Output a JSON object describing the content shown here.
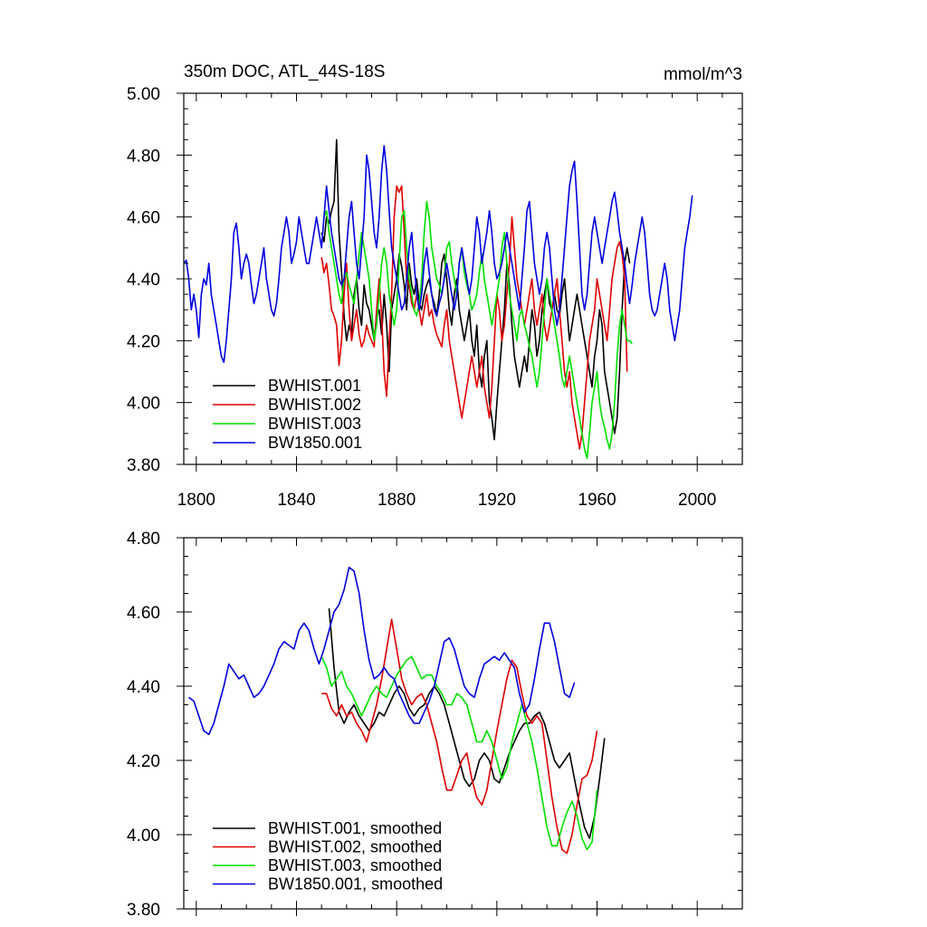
{
  "colors": {
    "BWHIST.001": "#000000",
    "BWHIST.002": "#e00000",
    "BWHIST.003": "#00e000",
    "BW1850.001": "#0000e0"
  },
  "chart_data": [
    {
      "type": "line",
      "title": "350m DOC, ATL_44S-18S",
      "units": "mmol/m^3",
      "xlim": [
        1795,
        2018
      ],
      "ylim": [
        3.8,
        5.0
      ],
      "xticks": [
        1800,
        1840,
        1880,
        1920,
        1960,
        2000
      ],
      "xtick_labels": [
        "1800",
        "1840",
        "1880",
        "1920",
        "1960",
        "2000"
      ],
      "yticks": [
        3.8,
        4.0,
        4.2,
        4.4,
        4.6,
        4.8,
        5.0
      ],
      "ytick_labels": [
        "3.80",
        "4.00",
        "4.20",
        "4.40",
        "4.60",
        "4.80",
        "5.00"
      ],
      "legend": "bottom-left",
      "series": [
        {
          "name": "BWHIST.001",
          "color": "#000000",
          "x0": 1850,
          "values": [
            4.55,
            4.52,
            4.6,
            4.58,
            4.62,
            4.65,
            4.85,
            4.55,
            4.42,
            4.28,
            4.2,
            4.25,
            4.22,
            4.35,
            4.4,
            4.3,
            4.25,
            4.38,
            4.32,
            4.3,
            4.25,
            4.2,
            4.28,
            4.3,
            4.22,
            4.35,
            4.25,
            4.1,
            4.3,
            4.35,
            4.4,
            4.48,
            4.44,
            4.38,
            4.3,
            4.45,
            4.38,
            4.35,
            4.4,
            4.32,
            4.3,
            4.35,
            4.38,
            4.4,
            4.35,
            4.32,
            4.28,
            4.35,
            4.45,
            4.48,
            4.4,
            4.3,
            4.25,
            4.35,
            4.4,
            4.3,
            4.25,
            4.2,
            4.25,
            4.3,
            4.2,
            4.15,
            4.25,
            4.1,
            4.05,
            4.15,
            4.2,
            4.0,
            3.95,
            3.88,
            4.0,
            4.1,
            4.2,
            4.3,
            4.45,
            4.38,
            4.25,
            4.15,
            4.1,
            4.05,
            4.1,
            4.15,
            4.1,
            4.2,
            4.3,
            4.25,
            4.15,
            4.2,
            4.3,
            4.35,
            4.4,
            4.32,
            4.3,
            4.35,
            4.3,
            4.28,
            4.35,
            4.4,
            4.3,
            4.2,
            4.25,
            4.3,
            4.35,
            4.3,
            4.25,
            4.2,
            4.15,
            4.1,
            4.05,
            4.15,
            4.2,
            4.3,
            4.25,
            4.1,
            4.05,
            4.0,
            3.95,
            3.9,
            3.95,
            4.1,
            4.3,
            4.45,
            4.5,
            4.45
          ]
        },
        {
          "name": "BWHIST.002",
          "color": "#e00000",
          "x0": 1850,
          "values": [
            4.47,
            4.42,
            4.45,
            4.38,
            4.3,
            4.28,
            4.25,
            4.12,
            4.2,
            4.35,
            4.45,
            4.3,
            4.2,
            4.25,
            4.3,
            4.22,
            4.18,
            4.2,
            4.25,
            4.22,
            4.2,
            4.18,
            4.3,
            4.4,
            4.28,
            4.1,
            4.02,
            4.2,
            4.35,
            4.6,
            4.7,
            4.68,
            4.7,
            4.55,
            4.4,
            4.38,
            4.32,
            4.3,
            4.35,
            4.3,
            4.25,
            4.3,
            4.35,
            4.28,
            4.3,
            4.25,
            4.22,
            4.2,
            4.18,
            4.25,
            4.3,
            4.2,
            4.15,
            4.1,
            4.05,
            4.0,
            3.95,
            4.0,
            4.05,
            4.1,
            4.15,
            4.1,
            4.05,
            4.1,
            4.15,
            4.05,
            4.0,
            3.95,
            4.05,
            4.2,
            4.35,
            4.3,
            4.2,
            4.25,
            4.35,
            4.45,
            4.6,
            4.5,
            4.4,
            4.35,
            4.3,
            4.25,
            4.3,
            4.35,
            4.4,
            4.3,
            4.25,
            4.3,
            4.35,
            4.25,
            4.2,
            4.25,
            4.3,
            4.35,
            4.4,
            4.3,
            4.2,
            4.1,
            4.05,
            4.1,
            4.0,
            3.95,
            3.9,
            3.85,
            3.9,
            4.0,
            4.1,
            4.2,
            4.25,
            4.3,
            4.4,
            4.35,
            4.3,
            4.25,
            4.2,
            4.3,
            4.4,
            4.45,
            4.5,
            4.52,
            4.48,
            4.4,
            4.1
          ]
        },
        {
          "name": "BWHIST.003",
          "color": "#00e000",
          "x0": 1851,
          "values": [
            4.6,
            4.62,
            4.55,
            4.5,
            4.45,
            4.4,
            4.35,
            4.32,
            4.4,
            4.42,
            4.38,
            4.35,
            4.32,
            4.4,
            4.48,
            4.55,
            4.5,
            4.45,
            4.4,
            4.3,
            4.2,
            4.25,
            4.35,
            4.45,
            4.5,
            4.45,
            4.35,
            4.3,
            4.25,
            4.3,
            4.45,
            4.6,
            4.62,
            4.5,
            4.4,
            4.35,
            4.3,
            4.28,
            4.32,
            4.4,
            4.55,
            4.65,
            4.6,
            4.5,
            4.45,
            4.4,
            4.38,
            4.35,
            4.4,
            4.5,
            4.52,
            4.45,
            4.4,
            4.35,
            4.45,
            4.5,
            4.42,
            4.38,
            4.35,
            4.3,
            4.32,
            4.35,
            4.42,
            4.48,
            4.4,
            4.35,
            4.3,
            4.25,
            4.3,
            4.35,
            4.4,
            4.5,
            4.55,
            4.45,
            4.35,
            4.3,
            4.25,
            4.2,
            4.28,
            4.3,
            4.25,
            4.22,
            4.18,
            4.15,
            4.1,
            4.05,
            4.1,
            4.2,
            4.3,
            4.4,
            4.35,
            4.3,
            4.25,
            4.2,
            4.15,
            4.08,
            4.05,
            4.1,
            4.15,
            4.1,
            4.05,
            4.0,
            3.95,
            3.9,
            3.85,
            3.82,
            3.9,
            4.0,
            4.05,
            4.1,
            4.0,
            3.95,
            3.92,
            3.88,
            3.85,
            3.9,
            4.0,
            4.15,
            4.25,
            4.3,
            4.25,
            4.2,
            4.2,
            4.19
          ]
        },
        {
          "name": "BW1850.001",
          "color": "#0000e0",
          "x0": 1795,
          "values": [
            4.45,
            4.46,
            4.4,
            4.3,
            4.35,
            4.3,
            4.21,
            4.35,
            4.4,
            4.38,
            4.45,
            4.35,
            4.3,
            4.25,
            4.2,
            4.15,
            4.13,
            4.2,
            4.3,
            4.4,
            4.55,
            4.58,
            4.5,
            4.4,
            4.45,
            4.48,
            4.45,
            4.38,
            4.32,
            4.35,
            4.4,
            4.45,
            4.5,
            4.4,
            4.35,
            4.3,
            4.28,
            4.32,
            4.4,
            4.5,
            4.55,
            4.6,
            4.55,
            4.45,
            4.48,
            4.52,
            4.6,
            4.55,
            4.5,
            4.45,
            4.45,
            4.5,
            4.55,
            4.6,
            4.55,
            4.5,
            4.6,
            4.7,
            4.62,
            4.55,
            4.5,
            4.45,
            4.4,
            4.38,
            4.4,
            4.5,
            4.6,
            4.65,
            4.55,
            4.45,
            4.4,
            4.5,
            4.6,
            4.8,
            4.75,
            4.65,
            4.55,
            4.5,
            4.6,
            4.75,
            4.83,
            4.75,
            4.62,
            4.5,
            4.45,
            4.4,
            4.35,
            4.3,
            4.32,
            4.4,
            4.5,
            4.55,
            4.45,
            4.35,
            4.3,
            4.35,
            4.45,
            4.5,
            4.42,
            4.35,
            4.3,
            4.28,
            4.32,
            4.35,
            4.4,
            4.45,
            4.4,
            4.35,
            4.3,
            4.35,
            4.45,
            4.5,
            4.45,
            4.4,
            4.35,
            4.4,
            4.5,
            4.6,
            4.55,
            4.45,
            4.5,
            4.55,
            4.62,
            4.55,
            4.45,
            4.4,
            4.42,
            4.45,
            4.5,
            4.55,
            4.5,
            4.45,
            4.4,
            4.35,
            4.3,
            4.4,
            4.5,
            4.62,
            4.65,
            4.55,
            4.45,
            4.4,
            4.35,
            4.4,
            4.5,
            4.55,
            4.5,
            4.4,
            4.3,
            4.25,
            4.3,
            4.4,
            4.5,
            4.6,
            4.7,
            4.75,
            4.78,
            4.65,
            4.5,
            4.35,
            4.3,
            4.35,
            4.45,
            4.55,
            4.6,
            4.55,
            4.5,
            4.45,
            4.5,
            4.55,
            4.6,
            4.65,
            4.68,
            4.62,
            4.55,
            4.5,
            4.45,
            4.38,
            4.32,
            4.38,
            4.45,
            4.5,
            4.55,
            4.6,
            4.55,
            4.45,
            4.35,
            4.3,
            4.28,
            4.3,
            4.35,
            4.4,
            4.45,
            4.4,
            4.3,
            4.25,
            4.2,
            4.25,
            4.3,
            4.4,
            4.5,
            4.55,
            4.6,
            4.67
          ]
        }
      ],
      "legend_labels": [
        "BWHIST.001",
        "BWHIST.002",
        "BWHIST.003",
        "BW1850.001"
      ]
    },
    {
      "type": "line",
      "title": "",
      "xlim": [
        1795,
        2018
      ],
      "ylim": [
        3.8,
        4.8
      ],
      "xticks": [
        1800,
        1840,
        1880,
        1920,
        1960,
        2000
      ],
      "yticks": [
        3.8,
        4.0,
        4.2,
        4.4,
        4.6,
        4.8
      ],
      "ytick_labels": [
        "3.80",
        "4.00",
        "4.20",
        "4.40",
        "4.60",
        "4.80"
      ],
      "legend": "bottom-left",
      "series": [
        {
          "name": "BWHIST.001, smoothed",
          "color": "#000000",
          "x0": 1853,
          "step": 2,
          "values": [
            4.61,
            4.45,
            4.33,
            4.3,
            4.33,
            4.35,
            4.32,
            4.3,
            4.28,
            4.3,
            4.33,
            4.32,
            4.35,
            4.38,
            4.4,
            4.38,
            4.34,
            4.32,
            4.34,
            4.35,
            4.38,
            4.4,
            4.38,
            4.35,
            4.3,
            4.25,
            4.2,
            4.15,
            4.13,
            4.15,
            4.2,
            4.22,
            4.2,
            4.15,
            4.14,
            4.18,
            4.22,
            4.25,
            4.28,
            4.3,
            4.3,
            4.32,
            4.33,
            4.3,
            4.25,
            4.2,
            4.18,
            4.2,
            4.22,
            4.15,
            4.08,
            4.02,
            3.99,
            4.05,
            4.15,
            4.26
          ]
        },
        {
          "name": "BWHIST.002, smoothed",
          "color": "#e00000",
          "x0": 1850,
          "step": 2,
          "values": [
            4.38,
            4.38,
            4.34,
            4.32,
            4.35,
            4.32,
            4.33,
            4.3,
            4.28,
            4.25,
            4.3,
            4.35,
            4.42,
            4.5,
            4.58,
            4.5,
            4.42,
            4.38,
            4.35,
            4.37,
            4.38,
            4.35,
            4.3,
            4.25,
            4.18,
            4.12,
            4.12,
            4.16,
            4.2,
            4.22,
            4.15,
            4.1,
            4.08,
            4.12,
            4.2,
            4.28,
            4.35,
            4.42,
            4.47,
            4.45,
            4.38,
            4.32,
            4.3,
            4.32,
            4.3,
            4.2,
            4.1,
            4.02,
            3.96,
            3.95,
            4.0,
            4.08,
            4.15,
            4.16,
            4.2,
            4.28
          ]
        },
        {
          "name": "BWHIST.003, smoothed",
          "color": "#00e000",
          "x0": 1850,
          "step": 2,
          "values": [
            4.48,
            4.45,
            4.4,
            4.42,
            4.44,
            4.4,
            4.38,
            4.35,
            4.32,
            4.35,
            4.38,
            4.4,
            4.38,
            4.37,
            4.4,
            4.43,
            4.45,
            4.47,
            4.48,
            4.45,
            4.42,
            4.43,
            4.43,
            4.4,
            4.38,
            4.35,
            4.35,
            4.38,
            4.37,
            4.35,
            4.3,
            4.25,
            4.25,
            4.28,
            4.25,
            4.2,
            4.15,
            4.18,
            4.25,
            4.3,
            4.35,
            4.3,
            4.25,
            4.18,
            4.1,
            4.02,
            3.97,
            3.97,
            4.02,
            4.06,
            4.09,
            4.05,
            3.99,
            3.96,
            3.98,
            4.12
          ]
        },
        {
          "name": "BW1850.001, smoothed",
          "color": "#0000e0",
          "x0": 1797,
          "step": 2,
          "values": [
            4.37,
            4.36,
            4.32,
            4.28,
            4.27,
            4.3,
            4.35,
            4.4,
            4.46,
            4.44,
            4.42,
            4.43,
            4.4,
            4.37,
            4.38,
            4.4,
            4.43,
            4.46,
            4.5,
            4.52,
            4.51,
            4.5,
            4.55,
            4.57,
            4.55,
            4.5,
            4.46,
            4.5,
            4.55,
            4.6,
            4.62,
            4.66,
            4.72,
            4.71,
            4.65,
            4.55,
            4.47,
            4.42,
            4.43,
            4.45,
            4.43,
            4.42,
            4.38,
            4.35,
            4.32,
            4.3,
            4.3,
            4.33,
            4.36,
            4.4,
            4.46,
            4.52,
            4.53,
            4.5,
            4.45,
            4.4,
            4.38,
            4.37,
            4.42,
            4.46,
            4.47,
            4.48,
            4.47,
            4.49,
            4.47,
            4.45,
            4.38,
            4.33,
            4.35,
            4.42,
            4.5,
            4.57,
            4.57,
            4.52,
            4.45,
            4.38,
            4.37,
            4.41
          ]
        }
      ],
      "legend_labels": [
        "BWHIST.001, smoothed",
        "BWHIST.002, smoothed",
        "BWHIST.003, smoothed",
        "BW1850.001, smoothed"
      ]
    }
  ]
}
